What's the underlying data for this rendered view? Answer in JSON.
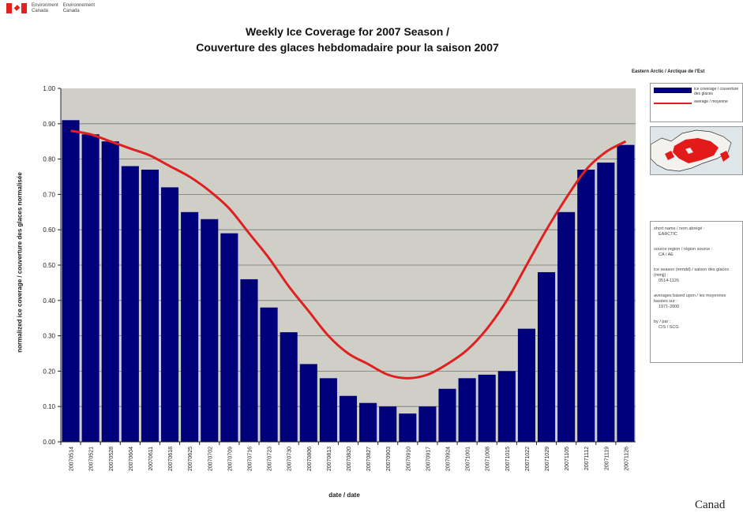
{
  "header": {
    "dept_en": [
      "Environment",
      "Canada"
    ],
    "dept_fr": [
      "Environnement",
      "Canada"
    ]
  },
  "wordmark": "Canad",
  "side_panel": {
    "region_title": "Eastern Arctic / Arctique de l'Est",
    "legend": [
      {
        "type": "bar",
        "label": "ice coverage / couverture des glaces"
      },
      {
        "type": "line",
        "label": "average / moyenne"
      }
    ],
    "info": [
      {
        "label": "short name / nom abrégé :",
        "value": "EARCTIC"
      },
      {
        "label": "source region / région source :",
        "value": "CA / AE"
      },
      {
        "label": "ice season (mmdd) / saison des glaces (mmjj) :",
        "value": "0514-1126"
      },
      {
        "label": "averages based upon / les moyennes basées sur :",
        "value": "1971-2000"
      },
      {
        "label": "by / par :",
        "value": "CIS / SCG"
      }
    ]
  },
  "colors": {
    "bar": "#00007a",
    "average_line": "#e02020",
    "plot_bg": "#cfcfc7",
    "gridline": "#777777"
  },
  "chart_data": {
    "type": "bar",
    "title": "Weekly Ice Coverage for 2007 Season /",
    "subtitle": "Couverture des glaces hebdomadaire pour la saison 2007",
    "xlabel": "date / date",
    "ylabel": "normalized ice coverage / couverture des glaces normalisée",
    "ylim": [
      0,
      1
    ],
    "yticks": [
      "0.00",
      "0.10",
      "0.20",
      "0.30",
      "0.40",
      "0.50",
      "0.60",
      "0.70",
      "0.80",
      "0.90",
      "1.00"
    ],
    "grid": true,
    "legend_position": "right",
    "categories": [
      "20070514",
      "20070521",
      "20070528",
      "20070604",
      "20070611",
      "20070618",
      "20070625",
      "20070702",
      "20070709",
      "20070716",
      "20070723",
      "20070730",
      "20070806",
      "20070813",
      "20070820",
      "20070827",
      "20070903",
      "20070910",
      "20070917",
      "20070924",
      "20071001",
      "20071008",
      "20071015",
      "20071022",
      "20071029",
      "20071105",
      "20071112",
      "20071119",
      "20071126"
    ],
    "series": [
      {
        "name": "ice coverage / couverture des glaces",
        "type": "bar",
        "values": [
          0.91,
          0.87,
          0.85,
          0.78,
          0.77,
          0.72,
          0.65,
          0.63,
          0.59,
          0.46,
          0.38,
          0.31,
          0.22,
          0.18,
          0.13,
          0.11,
          0.1,
          0.08,
          0.1,
          0.15,
          0.18,
          0.19,
          0.2,
          0.32,
          0.48,
          0.65,
          0.77,
          0.79,
          0.84
        ]
      },
      {
        "name": "average / moyenne",
        "type": "line",
        "values": [
          0.88,
          0.87,
          0.85,
          0.83,
          0.81,
          0.78,
          0.75,
          0.71,
          0.66,
          0.59,
          0.52,
          0.44,
          0.37,
          0.3,
          0.25,
          0.22,
          0.19,
          0.18,
          0.19,
          0.22,
          0.26,
          0.32,
          0.4,
          0.5,
          0.6,
          0.69,
          0.77,
          0.82,
          0.85
        ]
      }
    ]
  }
}
